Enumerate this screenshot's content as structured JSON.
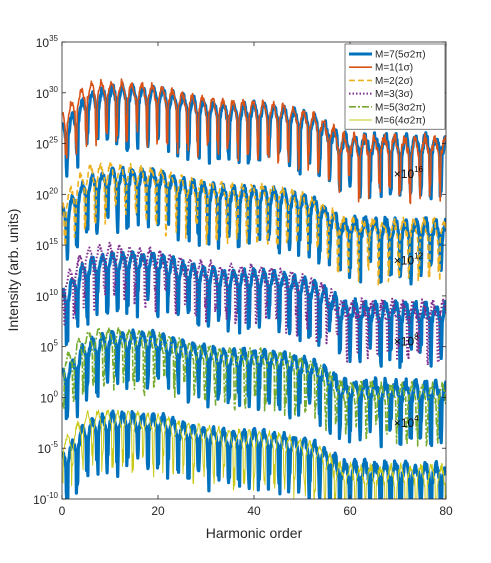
{
  "chart_data": {
    "type": "line",
    "title": "",
    "xlabel": "Harmonic order",
    "ylabel": "Intensity (arb. units)",
    "xlim": [
      0,
      80
    ],
    "ylim_exponent": [
      -10,
      35
    ],
    "yscale": "log",
    "grid": false,
    "legend_position": "top-right",
    "x_ticks": [
      "0",
      "20",
      "40",
      "60",
      "80"
    ],
    "y_ticks": [
      {
        "base": "10",
        "exp": "35",
        "value": 35
      },
      {
        "base": "10",
        "exp": "30",
        "value": 30
      },
      {
        "base": "10",
        "exp": "25",
        "value": 25
      },
      {
        "base": "10",
        "exp": "20",
        "value": 20
      },
      {
        "base": "10",
        "exp": "15",
        "value": 15
      },
      {
        "base": "10",
        "exp": "10",
        "value": 10
      },
      {
        "base": "10",
        "exp": "5",
        "value": 5
      },
      {
        "base": "10",
        "exp": "0",
        "value": 0
      },
      {
        "base": "10",
        "exp": "-5",
        "value": -5
      },
      {
        "base": "10",
        "exp": "-10",
        "value": -10
      }
    ],
    "annotations": [
      {
        "prefix": "×10",
        "exp": "16",
        "x": 76,
        "y": 22.0
      },
      {
        "prefix": "×10",
        "exp": "12",
        "x": 76,
        "y": 13.5
      },
      {
        "prefix": "×10",
        "exp": "8",
        "x": 76,
        "y": 5.5
      },
      {
        "prefix": "×10",
        "exp": "4",
        "x": 76,
        "y": -2.5
      }
    ],
    "series": [
      {
        "name": "M=7(5σ2π)",
        "color": "#0072BD",
        "style": "solid",
        "width": 3.2,
        "groups": [
          {
            "offset": 0,
            "x": [
              1,
              5,
              10,
              15,
              20,
              25,
              30,
              35,
              40,
              45,
              50,
              53,
              56,
              58,
              62,
              70,
              80
            ],
            "y": [
              26.2,
              28.8,
              29.7,
              29.7,
              29.6,
              28.8,
              28.3,
              27.9,
              28.0,
              27.8,
              27.2,
              26.8,
              25.8,
              24.8,
              24.8,
              24.8,
              24.7
            ]
          },
          {
            "offset": 4,
            "x": [
              1,
              5,
              10,
              15,
              20,
              25,
              30,
              35,
              40,
              45,
              50,
              53,
              56,
              58,
              62,
              70,
              80
            ],
            "y": [
              18.0,
              20.6,
              21.5,
              21.5,
              21.4,
              20.6,
              20.1,
              19.7,
              19.8,
              19.6,
              19.0,
              18.6,
              17.6,
              16.6,
              16.6,
              16.5,
              16.4
            ]
          },
          {
            "offset": 8,
            "x": [
              1,
              5,
              10,
              15,
              20,
              25,
              30,
              35,
              40,
              45,
              50,
              53,
              56,
              58,
              62,
              70,
              80
            ],
            "y": [
              10.0,
              12.5,
              13.3,
              13.3,
              13.2,
              12.4,
              11.9,
              11.5,
              11.6,
              11.4,
              10.8,
              10.4,
              9.4,
              8.4,
              8.4,
              8.3,
              8.2
            ]
          },
          {
            "offset": 12,
            "x": [
              1,
              5,
              10,
              15,
              20,
              25,
              30,
              35,
              40,
              45,
              50,
              53,
              56,
              58,
              62,
              70,
              80
            ],
            "y": [
              2.0,
              4.7,
              5.5,
              5.5,
              5.4,
              4.6,
              4.1,
              3.7,
              3.8,
              3.6,
              3.0,
              2.6,
              1.6,
              0.6,
              0.6,
              0.5,
              0.4
            ]
          },
          {
            "offset": 16,
            "x": [
              1,
              5,
              10,
              15,
              20,
              25,
              30,
              35,
              40,
              45,
              50,
              53,
              56,
              58,
              62,
              70,
              80
            ],
            "y": [
              -6.0,
              -3.3,
              -2.5,
              -2.5,
              -2.6,
              -3.4,
              -3.9,
              -4.3,
              -4.2,
              -4.4,
              -5.0,
              -5.4,
              -6.4,
              -7.4,
              -7.4,
              -7.5,
              -7.6
            ]
          }
        ]
      },
      {
        "name": "M=1(1σ)",
        "color": "#D95319",
        "style": "solid",
        "width": 1.6,
        "groups": [
          {
            "offset": 0,
            "x": [
              1,
              5,
              10,
              15,
              20,
              25,
              30,
              35,
              40,
              45,
              50,
              53,
              56,
              58,
              62,
              70,
              80
            ],
            "y": [
              27.5,
              30.0,
              30.3,
              30.0,
              29.8,
              29.0,
              28.6,
              28.2,
              28.2,
              28.0,
              27.3,
              26.9,
              25.8,
              24.9,
              24.7,
              24.6,
              24.6
            ]
          }
        ]
      },
      {
        "name": "M=2(2σ)",
        "color": "#EDB120",
        "style": "dashed",
        "width": 1.6,
        "groups": [
          {
            "offset": 4,
            "x": [
              1,
              5,
              10,
              15,
              20,
              25,
              30,
              35,
              40,
              45,
              50,
              53,
              56,
              58,
              62,
              70,
              80
            ],
            "y": [
              19.2,
              21.8,
              22.1,
              21.8,
              21.6,
              20.8,
              20.4,
              20.0,
              20.0,
              19.8,
              19.1,
              18.7,
              17.6,
              16.7,
              16.5,
              16.4,
              16.4
            ]
          }
        ]
      },
      {
        "name": "M=3(3σ)",
        "color": "#7E2F8E",
        "style": "dotted",
        "width": 2.0,
        "groups": [
          {
            "offset": 8,
            "x": [
              1,
              5,
              10,
              15,
              20,
              25,
              30,
              35,
              40,
              45,
              50,
              53,
              56,
              58,
              62,
              70,
              80
            ],
            "y": [
              11.2,
              13.8,
              14.1,
              13.8,
              13.6,
              12.8,
              12.4,
              12.0,
              12.0,
              11.8,
              11.1,
              10.7,
              9.6,
              8.7,
              8.5,
              8.4,
              8.4
            ]
          }
        ]
      },
      {
        "name": "M=5(3σ2π)",
        "color": "#77AC30",
        "style": "dashdot",
        "width": 1.6,
        "groups": [
          {
            "offset": 12,
            "x": [
              1,
              5,
              10,
              15,
              20,
              25,
              30,
              35,
              40,
              45,
              50,
              53,
              56,
              58,
              62,
              70,
              80
            ],
            "y": [
              3.2,
              5.6,
              5.8,
              5.6,
              5.4,
              4.6,
              4.2,
              3.8,
              3.8,
              3.6,
              2.9,
              2.5,
              1.4,
              0.5,
              0.4,
              0.3,
              0.3
            ]
          }
        ]
      },
      {
        "name": "M=6(4σ2π)",
        "color": "#C9C919",
        "style": "solid",
        "width": 1.0,
        "groups": [
          {
            "offset": 16,
            "x": [
              1,
              5,
              10,
              15,
              20,
              25,
              30,
              35,
              40,
              45,
              50,
              53,
              56,
              58,
              62,
              70,
              80
            ],
            "y": [
              -4.8,
              -2.4,
              -2.2,
              -2.4,
              -2.6,
              -3.4,
              -3.8,
              -4.2,
              -4.2,
              -4.4,
              -5.1,
              -5.5,
              -6.6,
              -7.5,
              -7.7,
              -7.8,
              -7.8
            ]
          }
        ]
      }
    ]
  }
}
